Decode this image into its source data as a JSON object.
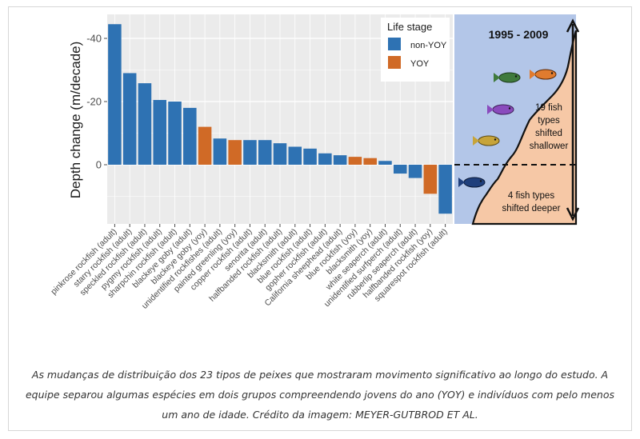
{
  "chart_data": {
    "type": "bar",
    "ylabel": "Depth change (m/decade)",
    "y_axis_reversed": true,
    "yticks": [
      "-40",
      "-20",
      "0"
    ],
    "ylim": [
      -47,
      17
    ],
    "grid": true,
    "legend": {
      "title": "Life stage",
      "placement": "top-right",
      "entries": [
        {
          "name": "non-YOY",
          "color": "#2e72b3"
        },
        {
          "name": "YOY",
          "color": "#d06a26"
        }
      ]
    },
    "categories": [
      "pinkrose rockfish (adult)",
      "starry rockfish (adult)",
      "speckled rockfish (adult)",
      "pygmy rockfish (adult)",
      "sharpchin rockfish (adult)",
      "blackeye goby (adult)",
      "blackeye goby (yoy)",
      "unidentified rockfishes (adult)",
      "painted greenling (yoy)",
      "copper rockfish (adult)",
      "senorita (adult)",
      "halfbanded rockfish (adult)",
      "blacksmith (adult)",
      "blue rockfish (adult)",
      "gopher rockfish (adult)",
      "California sheephead (adult)",
      "blue rockfish (yoy)",
      "blacksmith (yoy)",
      "white seaperch (adult)",
      "unidentified surfperch (adult)",
      "rubberlip seaperch (adult)",
      "halfbanded rockfish (yoy)",
      "squarespot rockfish (adult)"
    ],
    "values": [
      -44.5,
      -29,
      -25.8,
      -20.5,
      -20,
      -18,
      -12,
      -8.3,
      -7.8,
      -7.8,
      -7.8,
      -6.8,
      -5.7,
      -5.1,
      -3.6,
      -3.0,
      -2.5,
      -2.1,
      -1.2,
      2.8,
      4.2,
      9.2,
      15.5
    ],
    "life_stage": [
      "non-YOY",
      "non-YOY",
      "non-YOY",
      "non-YOY",
      "non-YOY",
      "non-YOY",
      "YOY",
      "non-YOY",
      "YOY",
      "non-YOY",
      "non-YOY",
      "non-YOY",
      "non-YOY",
      "non-YOY",
      "non-YOY",
      "non-YOY",
      "YOY",
      "YOY",
      "non-YOY",
      "non-YOY",
      "non-YOY",
      "YOY",
      "non-YOY"
    ],
    "colors": {
      "non-YOY": "#2e72b3",
      "YOY": "#d06a26",
      "panel_bg": "#ebebeb",
      "grid": "#ffffff"
    }
  },
  "illustration": {
    "period": "1995 - 2009",
    "shallower_text": [
      "19 fish",
      "types",
      "shifted",
      "shallower"
    ],
    "deeper_text": [
      "4 fish types",
      "shifted deeper"
    ],
    "colors": {
      "water": "#b3c6e8",
      "seafloor": "#f6c8a6"
    }
  },
  "caption": "As mudanças de distribuição dos 23 tipos de peixes que mostraram movimento significativo ao longo do estudo. A equipe separou algumas espécies em dois grupos compreendendo jovens do ano (YOY) e indivíduos com pelo menos um ano de idade. Crédito da imagem: MEYER-GUTBROD ET AL."
}
